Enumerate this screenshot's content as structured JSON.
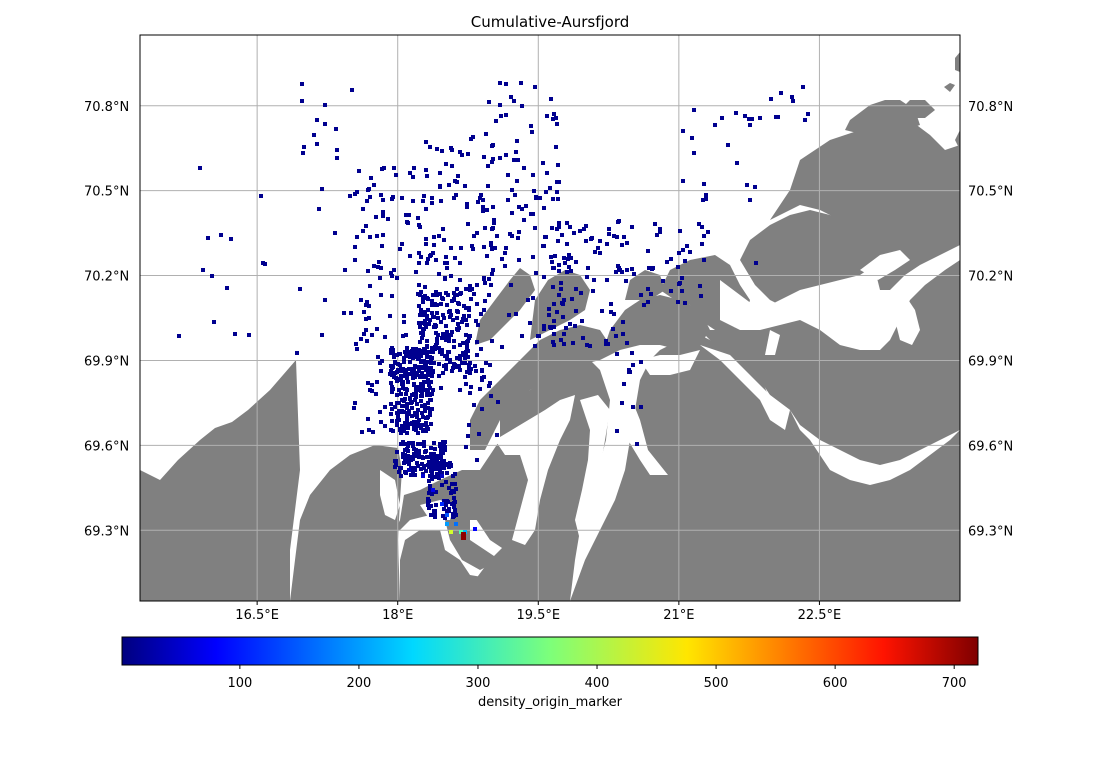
{
  "chart_data": {
    "type": "heatmap",
    "title": "Cumulative-Aursfjord",
    "x_axis": {
      "range": [
        15.25,
        24.0
      ],
      "ticks": [
        16.5,
        18.0,
        19.5,
        21.0,
        22.5
      ],
      "tick_labels": [
        "16.5°E",
        "18°E",
        "19.5°E",
        "21°E",
        "22.5°E"
      ]
    },
    "y_axis": {
      "range": [
        69.05,
        71.05
      ],
      "ticks": [
        69.3,
        69.6,
        69.9,
        70.2,
        70.5,
        70.8
      ],
      "tick_labels": [
        "69.3°N",
        "69.6°N",
        "69.9°N",
        "70.2°N",
        "70.5°N",
        "70.8°N"
      ],
      "labels_on_both_sides": true
    },
    "grid": true,
    "colorbar": {
      "label": "density_origin_marker",
      "colormap": "jet",
      "range": [
        1,
        720
      ],
      "ticks": [
        100,
        200,
        300,
        400,
        500,
        600,
        700
      ],
      "tick_labels": [
        "100",
        "200",
        "300",
        "400",
        "500",
        "600",
        "700"
      ],
      "orientation": "horizontal"
    },
    "land_color": "#808080",
    "sea_color": "#ffffff",
    "hotspot": {
      "lon": 18.7,
      "lat": 69.28,
      "value": 710
    },
    "density_cells": [
      [
        18.55,
        69.3,
        420
      ],
      [
        18.65,
        69.3,
        330
      ],
      [
        18.5,
        69.33,
        200
      ],
      [
        18.6,
        69.33,
        170
      ],
      [
        18.5,
        69.36,
        150
      ],
      [
        18.45,
        69.4,
        120
      ],
      [
        18.7,
        69.3,
        220
      ],
      [
        18.8,
        69.31,
        90
      ],
      [
        18.35,
        69.45,
        80
      ],
      [
        18.25,
        69.5,
        60
      ],
      [
        18.1,
        69.52,
        40
      ],
      [
        18.45,
        69.5,
        50
      ]
    ]
  },
  "colors": {
    "background": "#ffffff",
    "land": "#808080",
    "low_density": "#00008f",
    "grid": "#b0b0b0"
  }
}
